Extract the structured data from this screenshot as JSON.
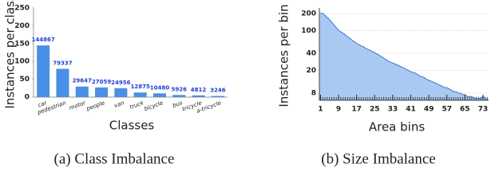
{
  "chart_data": [
    {
      "type": "bar",
      "caption": "(a) Class Imbalance",
      "x_label": "Classes",
      "y_label": "Instances per class",
      "categories": [
        "car",
        "pedestrian",
        "motor",
        "people",
        "van",
        "truck",
        "bicycle",
        "bus",
        "tricycle",
        "a-tricycle"
      ],
      "values": [
        144.867,
        79.337,
        29.647,
        27.059,
        24.956,
        12.875,
        10.48,
        5.926,
        4.812,
        3.246
      ],
      "value_labels": [
        "144867",
        "79337",
        "29647",
        "27059",
        "24956",
        "12875",
        "10480",
        "5926",
        "4812",
        "3246"
      ],
      "color": "#4a8fe7",
      "label_color": "#1f3fd6",
      "ylim": [
        0,
        250
      ],
      "yticks": [
        0,
        50,
        100,
        150,
        200,
        250
      ],
      "grid": false
    },
    {
      "type": "area",
      "caption": "(b) Size Imbalance",
      "x_label": "Area bins",
      "y_label": "Instances per bin",
      "x": [
        1,
        2,
        3,
        4,
        5,
        6,
        7,
        8,
        9,
        10,
        11,
        12,
        13,
        14,
        15,
        16,
        17,
        18,
        19,
        20,
        21,
        22,
        23,
        24,
        25,
        26,
        27,
        28,
        29,
        30,
        31,
        32,
        33,
        34,
        35,
        36,
        37,
        38,
        39,
        40,
        41,
        42,
        43,
        44,
        45,
        46,
        47,
        48,
        49,
        50,
        51,
        52,
        53,
        54,
        55,
        56,
        57,
        58,
        59,
        60,
        61,
        62,
        63,
        64,
        65,
        66,
        67,
        68,
        69,
        70,
        71,
        72,
        73,
        74,
        75
      ],
      "values": [
        205,
        200,
        185,
        170,
        155,
        140,
        125,
        112,
        102,
        95,
        90,
        84,
        78,
        73,
        68,
        64,
        60,
        57,
        54,
        52,
        49,
        47,
        45,
        43,
        41,
        39,
        37,
        35,
        33,
        31,
        29,
        28,
        27,
        26,
        25,
        24,
        23,
        22,
        21,
        20,
        19,
        18.5,
        18,
        17,
        16,
        15.5,
        15,
        14,
        13.5,
        13,
        12.5,
        12,
        11.5,
        11,
        10.5,
        10,
        10,
        9.5,
        9,
        8.5,
        8.5,
        8,
        8,
        7.5,
        7.5,
        7,
        7,
        7,
        6.5,
        6.5,
        6.5,
        6.5,
        7,
        6.5,
        6
      ],
      "color": "#a9c9f3",
      "line_color": "#3f73cf",
      "xlim": [
        0.5,
        75.5
      ],
      "xticks": [
        1,
        9,
        17,
        25,
        33,
        41,
        49,
        57,
        65,
        73
      ],
      "ylim": [
        6,
        250
      ],
      "yticks": [
        8,
        20,
        40,
        100,
        200
      ],
      "ylog": true,
      "grid": true
    }
  ]
}
